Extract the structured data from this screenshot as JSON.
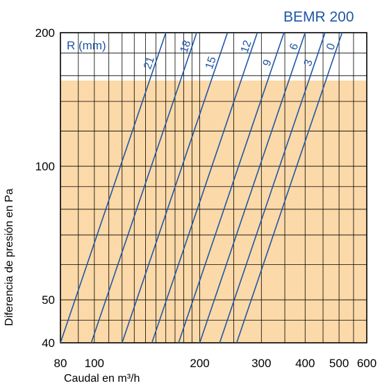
{
  "brand_label": "BEMR 200",
  "chart_data": {
    "type": "line",
    "title": "",
    "xlabel": "Caudal en m³/h",
    "ylabel": "Diferencia de presión en Pa",
    "xscale": "log",
    "yscale": "log",
    "xlim": [
      80,
      600
    ],
    "ylim": [
      40,
      200
    ],
    "x_ticks": [
      80,
      100,
      200,
      300,
      400,
      500,
      600
    ],
    "y_ticks": [
      40,
      50,
      100,
      200
    ],
    "grid": true,
    "legend_title": "R (mm)",
    "shaded_region": {
      "y_from": 40,
      "y_to": 156,
      "color": "#fcd9a8"
    },
    "series": [
      {
        "name": "21",
        "x": [
          80,
          160
        ],
        "y": [
          40,
          200
        ]
      },
      {
        "name": "18",
        "x": [
          98,
          196
        ],
        "y": [
          40,
          200
        ]
      },
      {
        "name": "15",
        "x": [
          120,
          240
        ],
        "y": [
          40,
          200
        ]
      },
      {
        "name": "12",
        "x": [
          146,
          292
        ],
        "y": [
          40,
          200
        ]
      },
      {
        "name": "9",
        "x": [
          174,
          348
        ],
        "y": [
          40,
          200
        ]
      },
      {
        "name": "6",
        "x": [
          200,
          400
        ],
        "y": [
          40,
          200
        ]
      },
      {
        "name": "3",
        "x": [
          228,
          456
        ],
        "y": [
          40,
          200
        ]
      },
      {
        "name": "0",
        "x": [
          255,
          510
        ],
        "y": [
          40,
          200
        ]
      }
    ],
    "colors": {
      "line": "#1f56a6",
      "grid": "#000000",
      "shade": "#fcd9a8"
    }
  }
}
